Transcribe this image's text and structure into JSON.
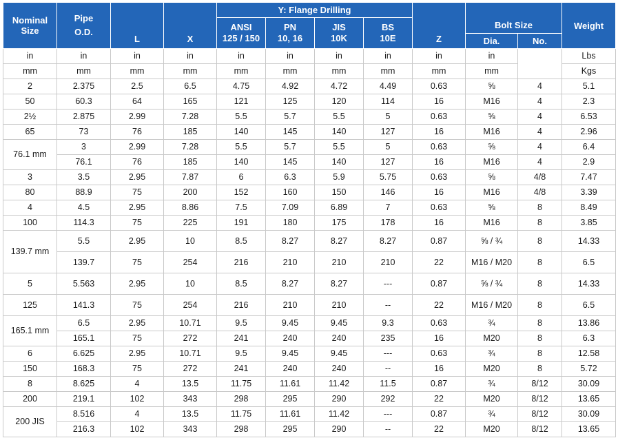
{
  "headers": {
    "nominal": "Nominal\nSize",
    "pipe_od": "Pipe\nO.D.",
    "L": "L",
    "X": "X",
    "flange": "Y: Flange Drilling",
    "ansi": "ANSI\n125 / 150",
    "pn": "PN\n10, 16",
    "jis": "JIS\n10K",
    "bs": "BS\n10E",
    "Z": "Z",
    "bolt": "Bolt Size",
    "dia": "Dia.",
    "no": "No.",
    "weight": "Weight"
  },
  "units": {
    "in": [
      "in",
      "in",
      "in",
      "in",
      "in",
      "in",
      "in",
      "in",
      "in",
      "in"
    ],
    "mm": [
      "mm",
      "mm",
      "mm",
      "mm",
      "mm",
      "mm",
      "mm",
      "mm",
      "mm",
      "mm"
    ],
    "weight_in": "Lbs",
    "weight_mm": "Kgs"
  },
  "rows": [
    {
      "size": "2",
      "od": "2.375",
      "l": "2.5",
      "x": "6.5",
      "ansi": "4.75",
      "pn": "4.92",
      "jis": "4.72",
      "bs": "4.49",
      "z": "0.63",
      "dia": "⅝",
      "no": "4",
      "w": "5.1"
    },
    {
      "size": "50",
      "od": "60.3",
      "l": "64",
      "x": "165",
      "ansi": "121",
      "pn": "125",
      "jis": "120",
      "bs": "114",
      "z": "16",
      "dia": "M16",
      "no": "4",
      "w": "2.3"
    },
    {
      "size": "2½",
      "od": "2.875",
      "l": "2.99",
      "x": "7.28",
      "ansi": "5.5",
      "pn": "5.7",
      "jis": "5.5",
      "bs": "5",
      "z": "0.63",
      "dia": "⅝",
      "no": "4",
      "w": "6.53"
    },
    {
      "size": "65",
      "od": "73",
      "l": "76",
      "x": "185",
      "ansi": "140",
      "pn": "145",
      "jis": "140",
      "bs": "127",
      "z": "16",
      "dia": "M16",
      "no": "4",
      "w": "2.96"
    },
    {
      "size": "76.1 mm",
      "od": "3",
      "l": "2.99",
      "x": "7.28",
      "ansi": "5.5",
      "pn": "5.7",
      "jis": "5.5",
      "bs": "5",
      "z": "0.63",
      "dia": "⅝",
      "no": "4",
      "w": "6.4"
    },
    {
      "od": "76.1",
      "l": "76",
      "x": "185",
      "ansi": "140",
      "pn": "145",
      "jis": "140",
      "bs": "127",
      "z": "16",
      "dia": "M16",
      "no": "4",
      "w": "2.9"
    },
    {
      "size": "3",
      "od": "3.5",
      "l": "2.95",
      "x": "7.87",
      "ansi": "6",
      "pn": "6.3",
      "jis": "5.9",
      "bs": "5.75",
      "z": "0.63",
      "dia": "⅝",
      "no": "4/8",
      "w": "7.47"
    },
    {
      "size": "80",
      "od": "88.9",
      "l": "75",
      "x": "200",
      "ansi": "152",
      "pn": "160",
      "jis": "150",
      "bs": "146",
      "z": "16",
      "dia": "M16",
      "no": "4/8",
      "w": "3.39"
    },
    {
      "size": "4",
      "od": "4.5",
      "l": "2.95",
      "x": "8.86",
      "ansi": "7.5",
      "pn": "7.09",
      "jis": "6.89",
      "bs": "7",
      "z": "0.63",
      "dia": "⅝",
      "no": "8",
      "w": "8.49"
    },
    {
      "size": "100",
      "od": "114.3",
      "l": "75",
      "x": "225",
      "ansi": "191",
      "pn": "180",
      "jis": "175",
      "bs": "178",
      "z": "16",
      "dia": "M16",
      "no": "8",
      "w": "3.85"
    },
    {
      "size": "139.7 mm",
      "od": "5.5",
      "l": "2.95",
      "x": "10",
      "ansi": "8.5",
      "pn": "8.27",
      "jis": "8.27",
      "bs": "8.27",
      "z": "0.87",
      "dia": "⅝ / ¾",
      "no": "8",
      "w": "14.33"
    },
    {
      "od": "139.7",
      "l": "75",
      "x": "254",
      "ansi": "216",
      "pn": "210",
      "jis": "210",
      "bs": "210",
      "z": "22",
      "dia": "M16 / M20",
      "no": "8",
      "w": "6.5"
    },
    {
      "size": "5",
      "od": "5.563",
      "l": "2.95",
      "x": "10",
      "ansi": "8.5",
      "pn": "8.27",
      "jis": "8.27",
      "bs": "---",
      "z": "0.87",
      "dia": "⅝ / ¾",
      "no": "8",
      "w": "14.33"
    },
    {
      "size": "125",
      "od": "141.3",
      "l": "75",
      "x": "254",
      "ansi": "216",
      "pn": "210",
      "jis": "210",
      "bs": "--",
      "z": "22",
      "dia": "M16 / M20",
      "no": "8",
      "w": "6.5"
    },
    {
      "size": "165.1 mm",
      "od": "6.5",
      "l": "2.95",
      "x": "10.71",
      "ansi": "9.5",
      "pn": "9.45",
      "jis": "9.45",
      "bs": "9.3",
      "z": "0.63",
      "dia": "¾",
      "no": "8",
      "w": "13.86"
    },
    {
      "od": "165.1",
      "l": "75",
      "x": "272",
      "ansi": "241",
      "pn": "240",
      "jis": "240",
      "bs": "235",
      "z": "16",
      "dia": "M20",
      "no": "8",
      "w": "6.3"
    },
    {
      "size": "6",
      "od": "6.625",
      "l": "2.95",
      "x": "10.71",
      "ansi": "9.5",
      "pn": "9.45",
      "jis": "9.45",
      "bs": "---",
      "z": "0.63",
      "dia": "¾",
      "no": "8",
      "w": "12.58"
    },
    {
      "size": "150",
      "od": "168.3",
      "l": "75",
      "x": "272",
      "ansi": "241",
      "pn": "240",
      "jis": "240",
      "bs": "--",
      "z": "16",
      "dia": "M20",
      "no": "8",
      "w": "5.72"
    },
    {
      "size": "8",
      "od": "8.625",
      "l": "4",
      "x": "13.5",
      "ansi": "11.75",
      "pn": "11.61",
      "jis": "11.42",
      "bs": "11.5",
      "z": "0.87",
      "dia": "¾",
      "no": "8/12",
      "w": "30.09"
    },
    {
      "size": "200",
      "od": "219.1",
      "l": "102",
      "x": "343",
      "ansi": "298",
      "pn": "295",
      "jis": "290",
      "bs": "292",
      "z": "22",
      "dia": "M20",
      "no": "8/12",
      "w": "13.65"
    },
    {
      "size": "200 JIS",
      "od": "8.516",
      "l": "4",
      "x": "13.5",
      "ansi": "11.75",
      "pn": "11.61",
      "jis": "11.42",
      "bs": "---",
      "z": "0.87",
      "dia": "¾",
      "no": "8/12",
      "w": "30.09"
    },
    {
      "od": "216.3",
      "l": "102",
      "x": "343",
      "ansi": "298",
      "pn": "295",
      "jis": "290",
      "bs": "--",
      "z": "22",
      "dia": "M20",
      "no": "8/12",
      "w": "13.65"
    }
  ]
}
